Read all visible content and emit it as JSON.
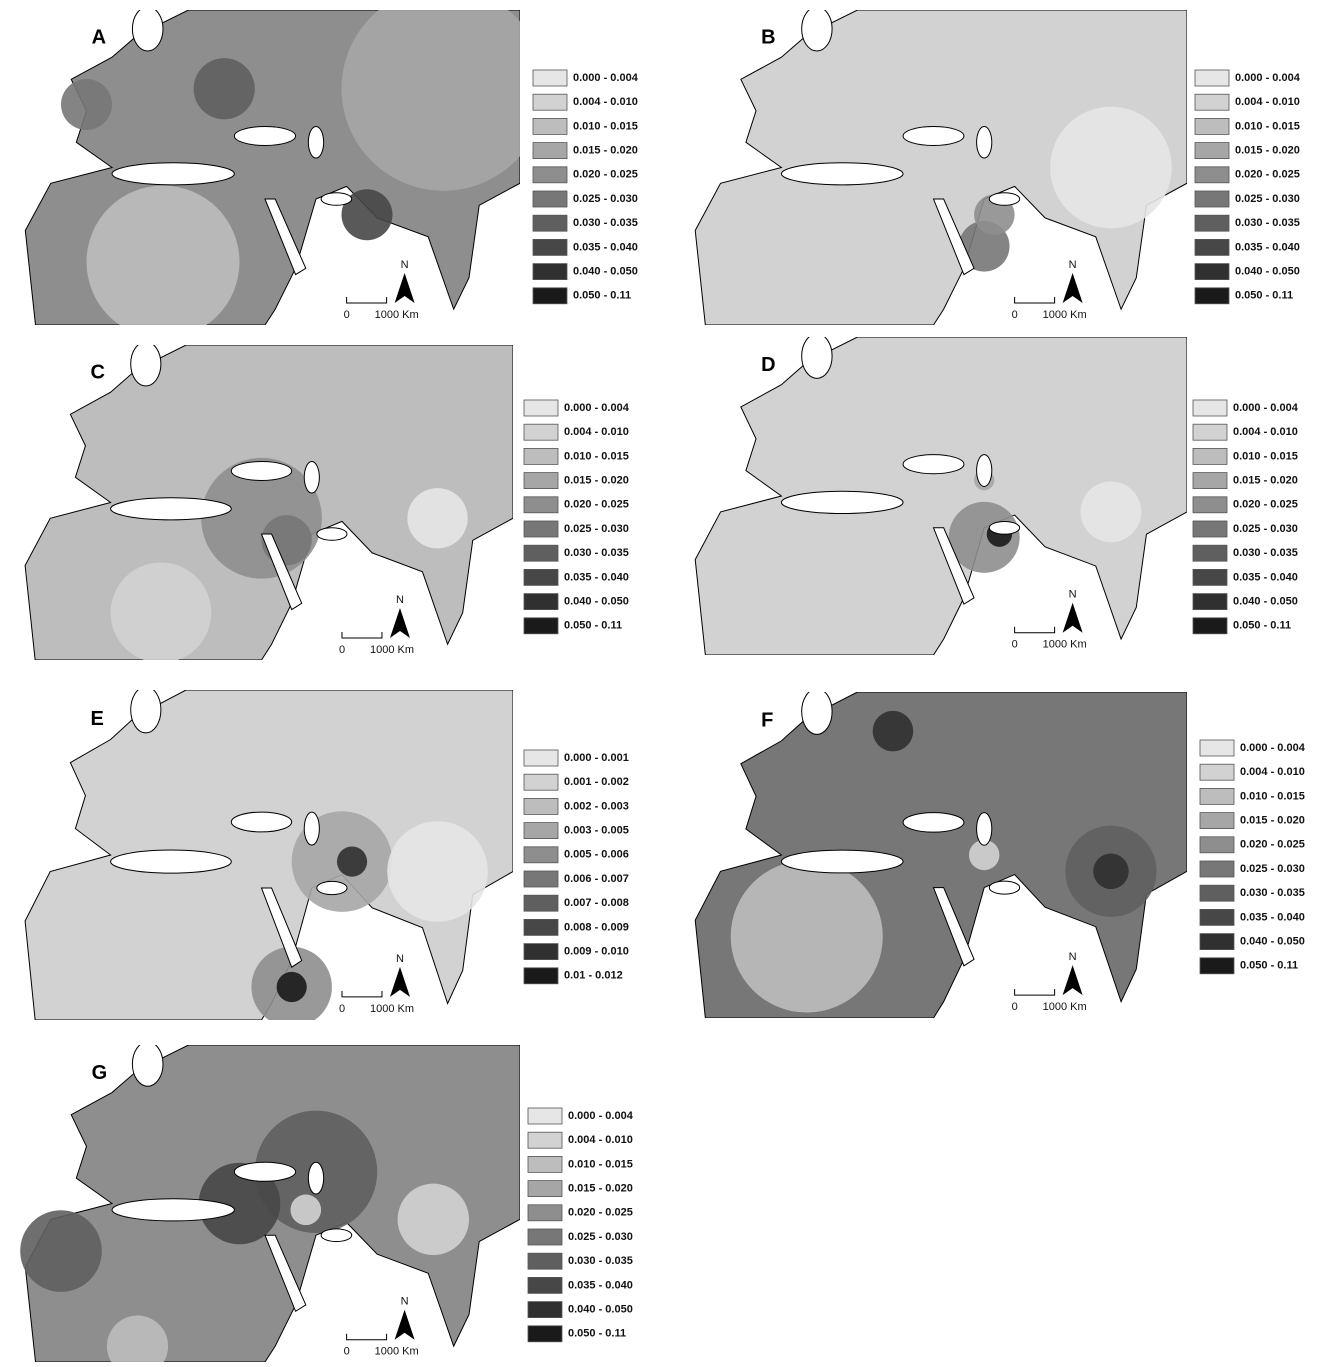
{
  "palette": [
    "#e6e6e6",
    "#d2d2d2",
    "#bdbdbd",
    "#a6a6a6",
    "#8e8e8e",
    "#777777",
    "#5f5f5f",
    "#474747",
    "#303030",
    "#1a1a1a"
  ],
  "panels": [
    {
      "label": "A",
      "legend": [
        "0.000 - 0.004",
        "0.004 - 0.010",
        "0.010 - 0.015",
        "0.015 - 0.020",
        "0.020 - 0.025",
        "0.025 - 0.030",
        "0.030 - 0.035",
        "0.035 - 0.040",
        "0.040 - 0.050",
        "0.050 - 0.11"
      ],
      "scale": [
        "0",
        "1000 Km"
      ],
      "north": "N"
    },
    {
      "label": "B",
      "legend": [
        "0.000 - 0.004",
        "0.004 - 0.010",
        "0.010 - 0.015",
        "0.015 - 0.020",
        "0.020 - 0.025",
        "0.025 - 0.030",
        "0.030 - 0.035",
        "0.035 - 0.040",
        "0.040 - 0.050",
        "0.050 - 0.11"
      ],
      "scale": [
        "0",
        "1000 Km"
      ],
      "north": "N"
    },
    {
      "label": "C",
      "legend": [
        "0.000 - 0.004",
        "0.004 - 0.010",
        "0.010 - 0.015",
        "0.015 - 0.020",
        "0.020 - 0.025",
        "0.025 - 0.030",
        "0.030 - 0.035",
        "0.035 - 0.040",
        "0.040 - 0.050",
        "0.050 - 0.11"
      ],
      "scale": [
        "0",
        "1000 Km"
      ],
      "north": "N"
    },
    {
      "label": "D",
      "legend": [
        "0.000 - 0.004",
        "0.004 - 0.010",
        "0.010 - 0.015",
        "0.015 - 0.020",
        "0.020 - 0.025",
        "0.025 - 0.030",
        "0.030 - 0.035",
        "0.035 - 0.040",
        "0.040 - 0.050",
        "0.050 - 0.11"
      ],
      "scale": [
        "0",
        "1000 Km"
      ],
      "north": "N"
    },
    {
      "label": "E",
      "legend": [
        "0.000 - 0.001",
        "0.001 - 0.002",
        "0.002 - 0.003",
        "0.003 - 0.005",
        "0.005 - 0.006",
        "0.006 - 0.007",
        "0.007 - 0.008",
        "0.008 - 0.009",
        "0.009 - 0.010",
        "0.01 - 0.012"
      ],
      "scale": [
        "0",
        "1000 Km"
      ],
      "north": "N"
    },
    {
      "label": "F",
      "legend": [
        "0.000 - 0.004",
        "0.004 - 0.010",
        "0.010 - 0.015",
        "0.015 - 0.020",
        "0.020 - 0.025",
        "0.025 - 0.030",
        "0.030 - 0.035",
        "0.035 - 0.040",
        "0.040 - 0.050",
        "0.050 - 0.11"
      ],
      "scale": [
        "0",
        "1000 Km"
      ],
      "north": "N"
    },
    {
      "label": "G",
      "legend": [
        "0.000 - 0.004",
        "0.004 - 0.010",
        "0.010 - 0.015",
        "0.015 - 0.020",
        "0.020 - 0.025",
        "0.025 - 0.030",
        "0.030 - 0.035",
        "0.035 - 0.040",
        "0.040 - 0.050",
        "0.050 - 0.11"
      ],
      "scale": [
        "0",
        "1000 Km"
      ],
      "north": "N"
    }
  ]
}
